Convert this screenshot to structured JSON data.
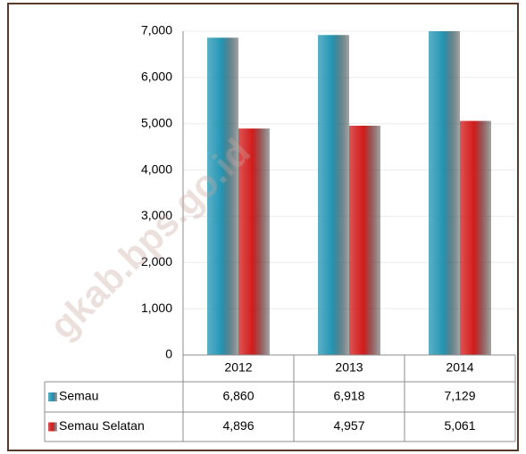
{
  "chart_data": {
    "type": "bar",
    "categories": [
      "2012",
      "2013",
      "2014"
    ],
    "series": [
      {
        "name": "Semau",
        "color": "#2596b4",
        "values": [
          6860,
          6918,
          7129
        ],
        "value_labels": [
          "6,860",
          "6,918",
          "7,129"
        ]
      },
      {
        "name": "Semau Selatan",
        "color": "#d21c1c",
        "values": [
          4896,
          4957,
          5061
        ],
        "value_labels": [
          "4,896",
          "4,957",
          "5,061"
        ]
      }
    ],
    "ylim": [
      0,
      7000
    ],
    "yticks": [
      0,
      {
        "value": 1000,
        "label": "1,000"
      },
      {
        "value": 2000,
        "label": "2,000"
      },
      {
        "value": 3000,
        "label": "3,000"
      },
      {
        "value": 4000,
        "label": "4,000"
      },
      {
        "value": 5000,
        "label": "5,000"
      },
      {
        "value": 6000,
        "label": "6,000"
      },
      {
        "value": 7000,
        "label": "7,000"
      }
    ],
    "grid": true,
    "watermark": "gkab.bps.go.id"
  }
}
